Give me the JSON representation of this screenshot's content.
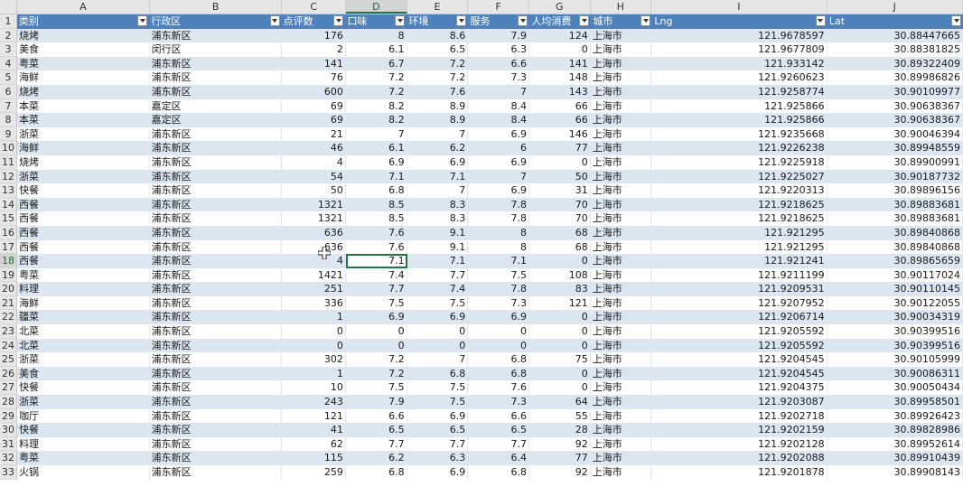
{
  "columns": [
    "A",
    "B",
    "C",
    "D",
    "E",
    "F",
    "G",
    "H",
    "I",
    "J"
  ],
  "selected_column": "D",
  "selected_row": "18",
  "headers": [
    "类别",
    "行政区",
    "点评数",
    "口味",
    "环境",
    "服务",
    "人均消费",
    "城市",
    "Lng",
    "Lat"
  ],
  "header_row_num": "1",
  "rows": [
    {
      "n": "2",
      "cells": [
        "烧烤",
        "浦东新区",
        "176",
        "8",
        "8.6",
        "7.9",
        "124",
        "上海市",
        "121.9678597",
        "30.88447665"
      ]
    },
    {
      "n": "3",
      "cells": [
        "美食",
        "闵行区",
        "2",
        "6.1",
        "6.5",
        "6.3",
        "0",
        "上海市",
        "121.9677809",
        "30.88381825"
      ]
    },
    {
      "n": "4",
      "cells": [
        "粤菜",
        "浦东新区",
        "141",
        "6.7",
        "7.2",
        "6.6",
        "141",
        "上海市",
        "121.933142",
        "30.89322409"
      ]
    },
    {
      "n": "5",
      "cells": [
        "海鲜",
        "浦东新区",
        "76",
        "7.2",
        "7.2",
        "7.3",
        "148",
        "上海市",
        "121.9260623",
        "30.89986826"
      ]
    },
    {
      "n": "6",
      "cells": [
        "烧烤",
        "浦东新区",
        "600",
        "7.2",
        "7.6",
        "7",
        "143",
        "上海市",
        "121.9258774",
        "30.90109977"
      ]
    },
    {
      "n": "7",
      "cells": [
        "本菜",
        "嘉定区",
        "69",
        "8.2",
        "8.9",
        "8.4",
        "66",
        "上海市",
        "121.925866",
        "30.90638367"
      ]
    },
    {
      "n": "8",
      "cells": [
        "本菜",
        "嘉定区",
        "69",
        "8.2",
        "8.9",
        "8.4",
        "66",
        "上海市",
        "121.925866",
        "30.90638367"
      ]
    },
    {
      "n": "9",
      "cells": [
        "浙菜",
        "浦东新区",
        "21",
        "7",
        "7",
        "6.9",
        "146",
        "上海市",
        "121.9235668",
        "30.90046394"
      ]
    },
    {
      "n": "10",
      "cells": [
        "海鲜",
        "浦东新区",
        "46",
        "6.1",
        "6.2",
        "6",
        "77",
        "上海市",
        "121.9226238",
        "30.89948559"
      ]
    },
    {
      "n": "11",
      "cells": [
        "烧烤",
        "浦东新区",
        "4",
        "6.9",
        "6.9",
        "6.9",
        "0",
        "上海市",
        "121.9225918",
        "30.89900991"
      ]
    },
    {
      "n": "12",
      "cells": [
        "浙菜",
        "浦东新区",
        "54",
        "7.1",
        "7.1",
        "7",
        "50",
        "上海市",
        "121.9225027",
        "30.90187732"
      ]
    },
    {
      "n": "13",
      "cells": [
        "快餐",
        "浦东新区",
        "50",
        "6.8",
        "7",
        "6.9",
        "31",
        "上海市",
        "121.9220313",
        "30.89896156"
      ]
    },
    {
      "n": "14",
      "cells": [
        "西餐",
        "浦东新区",
        "1321",
        "8.5",
        "8.3",
        "7.8",
        "70",
        "上海市",
        "121.9218625",
        "30.89883681"
      ]
    },
    {
      "n": "15",
      "cells": [
        "西餐",
        "浦东新区",
        "1321",
        "8.5",
        "8.3",
        "7.8",
        "70",
        "上海市",
        "121.9218625",
        "30.89883681"
      ]
    },
    {
      "n": "16",
      "cells": [
        "西餐",
        "浦东新区",
        "636",
        "7.6",
        "9.1",
        "8",
        "68",
        "上海市",
        "121.921295",
        "30.89840868"
      ]
    },
    {
      "n": "17",
      "cells": [
        "西餐",
        "浦东新区",
        "636",
        "7.6",
        "9.1",
        "8",
        "68",
        "上海市",
        "121.921295",
        "30.89840868"
      ]
    },
    {
      "n": "18",
      "cells": [
        "西餐",
        "浦东新区",
        "4",
        "7.1",
        "7.1",
        "7.1",
        "0",
        "上海市",
        "121.921241",
        "30.89865659"
      ]
    },
    {
      "n": "19",
      "cells": [
        "粤菜",
        "浦东新区",
        "1421",
        "7.4",
        "7.7",
        "7.5",
        "108",
        "上海市",
        "121.9211199",
        "30.90117024"
      ]
    },
    {
      "n": "20",
      "cells": [
        "料理",
        "浦东新区",
        "251",
        "7.7",
        "7.4",
        "7.8",
        "83",
        "上海市",
        "121.9209531",
        "30.90110145"
      ]
    },
    {
      "n": "21",
      "cells": [
        "海鲜",
        "浦东新区",
        "336",
        "7.5",
        "7.5",
        "7.3",
        "121",
        "上海市",
        "121.9207952",
        "30.90122055"
      ]
    },
    {
      "n": "22",
      "cells": [
        "疆菜",
        "浦东新区",
        "1",
        "6.9",
        "6.9",
        "6.9",
        "0",
        "上海市",
        "121.9206714",
        "30.90034319"
      ]
    },
    {
      "n": "23",
      "cells": [
        "北菜",
        "浦东新区",
        "0",
        "0",
        "0",
        "0",
        "0",
        "上海市",
        "121.9205592",
        "30.90399516"
      ]
    },
    {
      "n": "24",
      "cells": [
        "北菜",
        "浦东新区",
        "0",
        "0",
        "0",
        "0",
        "0",
        "上海市",
        "121.9205592",
        "30.90399516"
      ]
    },
    {
      "n": "25",
      "cells": [
        "浙菜",
        "浦东新区",
        "302",
        "7.2",
        "7",
        "6.8",
        "75",
        "上海市",
        "121.9204545",
        "30.90105999"
      ]
    },
    {
      "n": "26",
      "cells": [
        "美食",
        "浦东新区",
        "1",
        "7.2",
        "6.8",
        "6.8",
        "0",
        "上海市",
        "121.9204545",
        "30.90086311"
      ]
    },
    {
      "n": "27",
      "cells": [
        "快餐",
        "浦东新区",
        "10",
        "7.5",
        "7.5",
        "7.6",
        "0",
        "上海市",
        "121.9204375",
        "30.90050434"
      ]
    },
    {
      "n": "28",
      "cells": [
        "浙菜",
        "浦东新区",
        "243",
        "7.9",
        "7.5",
        "7.3",
        "64",
        "上海市",
        "121.9203087",
        "30.89958501"
      ]
    },
    {
      "n": "29",
      "cells": [
        "咖厅",
        "浦东新区",
        "121",
        "6.6",
        "6.9",
        "6.6",
        "55",
        "上海市",
        "121.9202718",
        "30.89926423"
      ]
    },
    {
      "n": "30",
      "cells": [
        "快餐",
        "浦东新区",
        "41",
        "6.5",
        "6.5",
        "6.5",
        "28",
        "上海市",
        "121.9202159",
        "30.89828986"
      ]
    },
    {
      "n": "31",
      "cells": [
        "料理",
        "浦东新区",
        "62",
        "7.7",
        "7.7",
        "7.7",
        "92",
        "上海市",
        "121.9202128",
        "30.89952614"
      ]
    },
    {
      "n": "32",
      "cells": [
        "粤菜",
        "浦东新区",
        "115",
        "6.2",
        "6.3",
        "6.4",
        "77",
        "上海市",
        "121.9202088",
        "30.89910439"
      ]
    },
    {
      "n": "33",
      "cells": [
        "火锅",
        "浦东新区",
        "259",
        "6.8",
        "6.9",
        "6.8",
        "92",
        "上海市",
        "121.9201878",
        "30.89908143"
      ]
    }
  ]
}
